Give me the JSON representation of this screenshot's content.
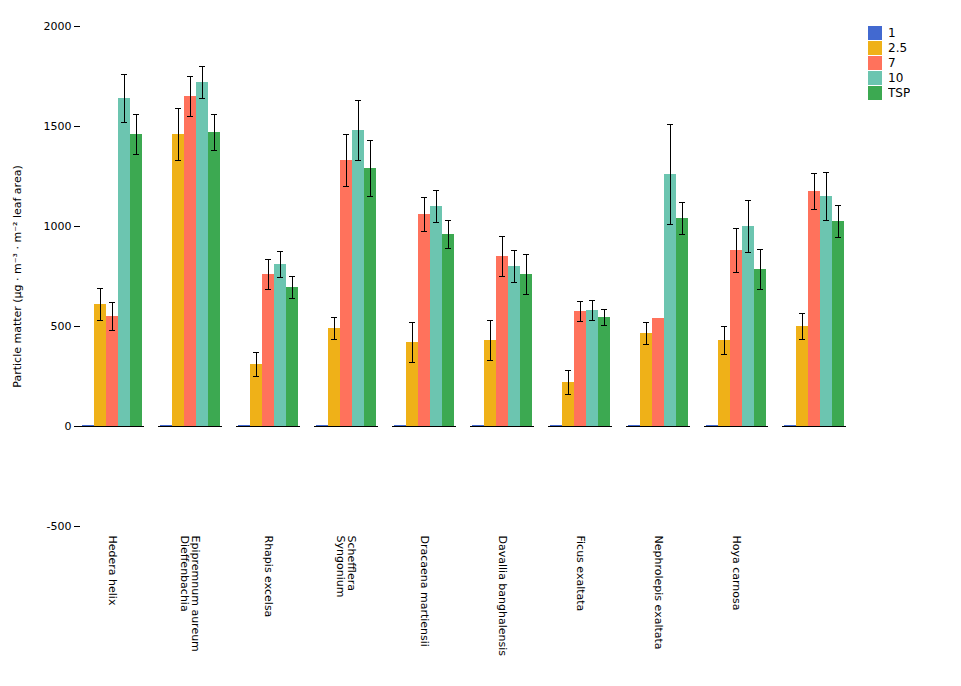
{
  "chart_data": {
    "type": "bar",
    "categories": [
      "Hedera helix",
      "Epipremnum aureum\nDieffenbachia",
      "Rhapis excelsa",
      "Schefflera\nSyngonium",
      "Dracaena martiensii",
      "Davallia banghalensis",
      "Ficus exaltata",
      "Nephrolepis exaltata",
      "Hoya carnosa",
      null
    ],
    "series": [
      {
        "name": "1",
        "values": [
          5,
          5,
          5,
          5,
          5,
          5,
          5,
          5,
          5,
          5
        ],
        "errors": [
          0,
          0,
          0,
          0,
          0,
          0,
          0,
          0,
          0,
          0
        ]
      },
      {
        "name": "2.5",
        "values": [
          610,
          1460,
          310,
          490,
          420,
          430,
          220,
          465,
          430,
          500
        ],
        "errors": [
          80,
          130,
          60,
          55,
          100,
          100,
          60,
          55,
          70,
          65
        ]
      },
      {
        "name": "7",
        "values": [
          550,
          1650,
          760,
          1330,
          1060,
          850,
          575,
          540,
          880,
          1175
        ],
        "errors": [
          70,
          100,
          75,
          130,
          85,
          100,
          50,
          0,
          110,
          90
        ]
      },
      {
        "name": "10",
        "values": [
          1640,
          1720,
          810,
          1480,
          1100,
          800,
          580,
          1260,
          1000,
          1150
        ],
        "errors": [
          120,
          80,
          65,
          150,
          80,
          80,
          50,
          250,
          130,
          120
        ]
      },
      {
        "name": "TSP",
        "values": [
          1460,
          1470,
          695,
          1290,
          960,
          760,
          545,
          1040,
          785,
          1025
        ],
        "errors": [
          100,
          90,
          55,
          140,
          70,
          100,
          40,
          80,
          100,
          80
        ]
      }
    ],
    "ylabel": "Particle matter (μg · m⁻³ · m⁻² leaf area)",
    "ylim": [
      -500,
      2000
    ],
    "yticks": [
      -500,
      0,
      500,
      1000,
      1500,
      2000
    ],
    "grid": false,
    "legend": "right"
  }
}
